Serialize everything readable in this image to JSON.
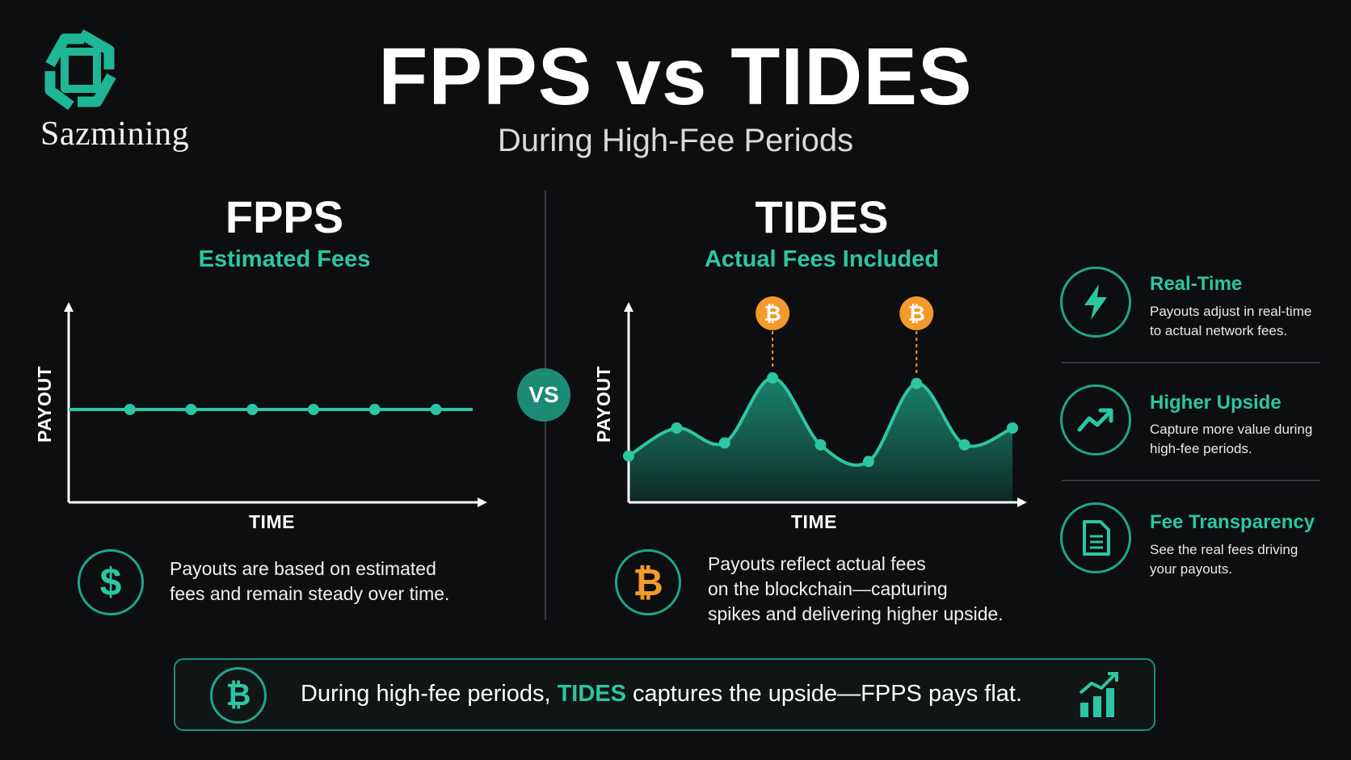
{
  "brand": {
    "name": "Sazmining",
    "accent": "#2cc6a2",
    "bitcoin_color": "#f39a2a"
  },
  "header": {
    "title": "FPPS vs TIDES",
    "subtitle": "During High-Fee Periods"
  },
  "vs_label": "VS",
  "panels": {
    "fpps": {
      "title": "FPPS",
      "subtitle": "Estimated Fees",
      "description_line1": "Payouts are based on estimated",
      "description_line2": "fees and remain steady over time.",
      "icon": "dollar-icon"
    },
    "tides": {
      "title": "TIDES",
      "subtitle": "Actual Fees Included",
      "description_line1": "Payouts reflect actual fees",
      "description_line2": "on the blockchain—capturing",
      "description_line3": "spikes and delivering higher upside.",
      "icon": "bitcoin-icon"
    }
  },
  "chart_data": [
    {
      "type": "line",
      "title": "FPPS",
      "xlabel": "TIME",
      "ylabel": "PAYOUT",
      "x": [
        1,
        2,
        3,
        4,
        5,
        6
      ],
      "series": [
        {
          "values": [
            0.5,
            0.5,
            0.5,
            0.5,
            0.5,
            0.5
          ]
        }
      ],
      "ylim": [
        0,
        1
      ],
      "grid": false
    },
    {
      "type": "area",
      "title": "TIDES",
      "xlabel": "TIME",
      "ylabel": "PAYOUT",
      "x": [
        0,
        1,
        2,
        3,
        4,
        5,
        6,
        7,
        8
      ],
      "series": [
        {
          "values": [
            0.25,
            0.4,
            0.32,
            0.67,
            0.31,
            0.22,
            0.64,
            0.31,
            0.4
          ]
        }
      ],
      "ylim": [
        0,
        1
      ],
      "annotations": [
        {
          "at_x": 3,
          "icon": "bitcoin-icon",
          "label": "₿"
        },
        {
          "at_x": 6,
          "icon": "bitcoin-icon",
          "label": "₿"
        }
      ],
      "grid": false
    }
  ],
  "features": [
    {
      "title": "Real-Time",
      "line1": "Payouts adjust in real-time",
      "line2": "to actual network fees.",
      "icon": "lightning-icon"
    },
    {
      "title": "Higher Upside",
      "line1": "Capture more value during",
      "line2": "high-fee periods.",
      "icon": "trend-up-icon"
    },
    {
      "title": "Fee Transparency",
      "line1": "See the real fees driving",
      "line2": "your payouts.",
      "icon": "document-icon"
    }
  ],
  "banner": {
    "text_before": "During high-fee periods, ",
    "highlight": "TIDES",
    "text_after": " captures the upside—FPPS pays flat.",
    "left_icon": "bitcoin-icon",
    "right_icon": "bar-chart-growth-icon"
  }
}
